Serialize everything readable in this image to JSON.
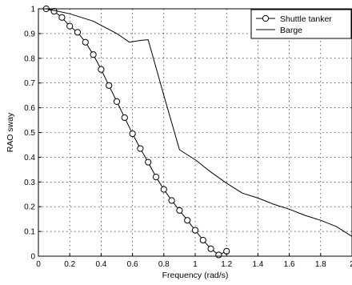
{
  "chart_data": {
    "type": "line",
    "xlabel": "Frequency (rad/s)",
    "ylabel": "RAO sway",
    "xlim": [
      0,
      2
    ],
    "ylim": [
      0,
      1
    ],
    "xticks": [
      "0",
      "0.2",
      "0.4",
      "0.6",
      "0.8",
      "1",
      "1.2",
      "1.4",
      "1.6",
      "1.8",
      "2"
    ],
    "yticks": [
      "0",
      "0.1",
      "0.2",
      "0.3",
      "0.4",
      "0.5",
      "0.6",
      "0.7",
      "0.8",
      "0.9",
      "1"
    ],
    "grid": "dotted",
    "legend_position": "top-right",
    "series": [
      {
        "name": "Shuttle tanker",
        "marker": "circle",
        "color": "#000000",
        "x": [
          0.05,
          0.1,
          0.15,
          0.2,
          0.25,
          0.3,
          0.35,
          0.4,
          0.45,
          0.5,
          0.55,
          0.6,
          0.65,
          0.7,
          0.75,
          0.8,
          0.85,
          0.9,
          0.95,
          1.0,
          1.05,
          1.1,
          1.15,
          1.2
        ],
        "y": [
          1.0,
          0.99,
          0.965,
          0.93,
          0.905,
          0.865,
          0.815,
          0.755,
          0.69,
          0.625,
          0.56,
          0.495,
          0.435,
          0.38,
          0.32,
          0.27,
          0.225,
          0.185,
          0.145,
          0.105,
          0.065,
          0.03,
          0.005,
          0.02
        ]
      },
      {
        "name": "Barge",
        "marker": "none",
        "color": "#000000",
        "x": [
          0.05,
          0.2,
          0.35,
          0.5,
          0.58,
          0.65,
          0.7,
          0.8,
          0.9,
          1.0,
          1.1,
          1.2,
          1.3,
          1.4,
          1.5,
          1.6,
          1.7,
          1.8,
          1.9,
          2.0
        ],
        "y": [
          1.0,
          0.98,
          0.95,
          0.9,
          0.865,
          0.872,
          0.875,
          0.65,
          0.43,
          0.39,
          0.34,
          0.295,
          0.255,
          0.235,
          0.21,
          0.19,
          0.165,
          0.145,
          0.12,
          0.08
        ]
      }
    ]
  }
}
